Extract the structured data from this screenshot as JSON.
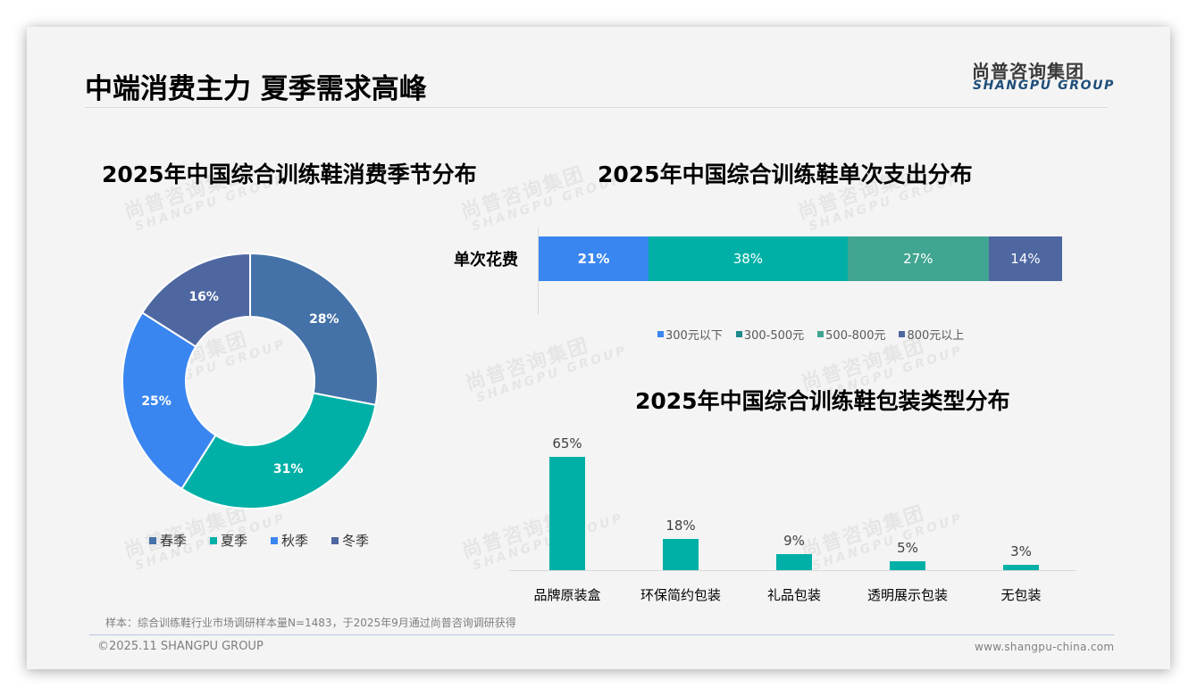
{
  "header": {
    "page_title": "中端消费主力 夏季需求高峰",
    "logo_cn": "尚普咨询集团",
    "logo_en": "SHANGPU GROUP"
  },
  "watermark": {
    "cn": "尚普咨询集团",
    "en": "SHANGPU GROUP"
  },
  "colors": {
    "spring": "#4472a8",
    "summer": "#00b0a6",
    "autumn": "#3a86f0",
    "winter": "#4e67a1",
    "spend_under300": "#3a86f0",
    "spend_300_500": "#00b0a6",
    "spend_300_500_legend": "#1e8a8c",
    "spend_500_800": "#40a591",
    "spend_over800": "#4e67a1",
    "package_bar": "#00b0a6"
  },
  "chart_data": [
    {
      "type": "pie",
      "donut": true,
      "title": "2025年中国综合训练鞋消费季节分布",
      "categories": [
        "春季",
        "夏季",
        "秋季",
        "冬季"
      ],
      "values": [
        28,
        31,
        25,
        16
      ],
      "value_labels": [
        "28%",
        "31%",
        "25%",
        "16%"
      ],
      "legend_position": "bottom"
    },
    {
      "type": "bar",
      "orientation": "horizontal",
      "stacked": true,
      "percent": true,
      "title": "2025年中国综合训练鞋单次支出分布",
      "categories": [
        "单次花费"
      ],
      "series": [
        {
          "name": "300元以下",
          "values": [
            21
          ],
          "label": "21%"
        },
        {
          "name": "300-500元",
          "values": [
            38
          ],
          "label": "38%"
        },
        {
          "name": "500-800元",
          "values": [
            27
          ],
          "label": "27%"
        },
        {
          "name": "800元以上",
          "values": [
            14
          ],
          "label": "14%"
        }
      ],
      "legend_position": "bottom"
    },
    {
      "type": "bar",
      "title": "2025年中国综合训练鞋包装类型分布",
      "categories": [
        "品牌原装盒",
        "环保简约包装",
        "礼品包装",
        "透明展示包装",
        "无包装"
      ],
      "values": [
        65,
        18,
        9,
        5,
        3
      ],
      "value_labels": [
        "65%",
        "18%",
        "9%",
        "5%",
        "3%"
      ],
      "xlabel": "",
      "ylabel": "",
      "grid": false
    }
  ],
  "footer": {
    "footnote": "样本：综合训练鞋行业市场调研样本量N=1483，于2025年9月通过尚普咨询调研获得",
    "copyright": "©2025.11 SHANGPU GROUP",
    "website": "www.shangpu-china.com"
  }
}
